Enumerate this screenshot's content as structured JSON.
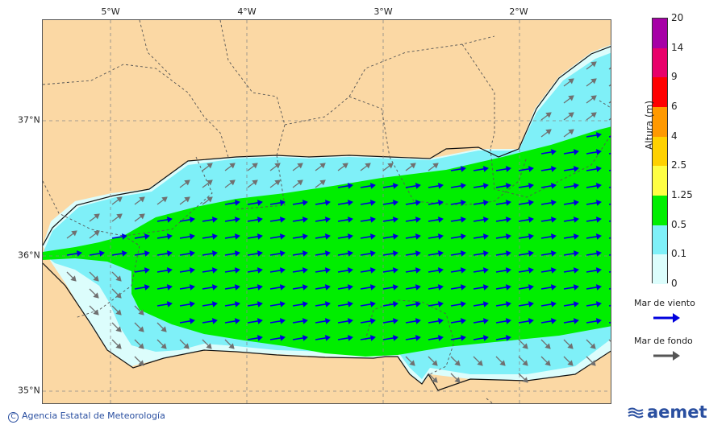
{
  "map": {
    "longitude_labels": [
      "5°W",
      "4°W",
      "3°W",
      "2°W"
    ],
    "latitude_labels": [
      "37°N",
      "36°N",
      "35°N"
    ],
    "colors": {
      "land": "#fbd8a4",
      "sea_0": "#dcfdfc",
      "sea_01": "#7ff0f8",
      "sea_05": "#00ee00",
      "wind_arrow": "#0000dd",
      "swell_arrow": "#707070"
    },
    "wind_direction": "east-northeast",
    "swell_direction": "southeast"
  },
  "legend": {
    "title": "Altura (m)",
    "ticks": [
      "20",
      "14",
      "9",
      "6",
      "4",
      "2.5",
      "1.25",
      "0.5",
      "0.1",
      "0"
    ],
    "colors": [
      "#a600a6",
      "#e8006a",
      "#ff0000",
      "#ff9900",
      "#ffd100",
      "#ffff44",
      "#00ee00",
      "#7ff0f8",
      "#dcfdfc"
    ],
    "wind_sea_label": "Mar de viento",
    "swell_label": "Mar de fondo"
  },
  "footer": {
    "copyright_symbol": "C",
    "agency": "Agencia Estatal de Meteorología",
    "logo": "aemet"
  }
}
